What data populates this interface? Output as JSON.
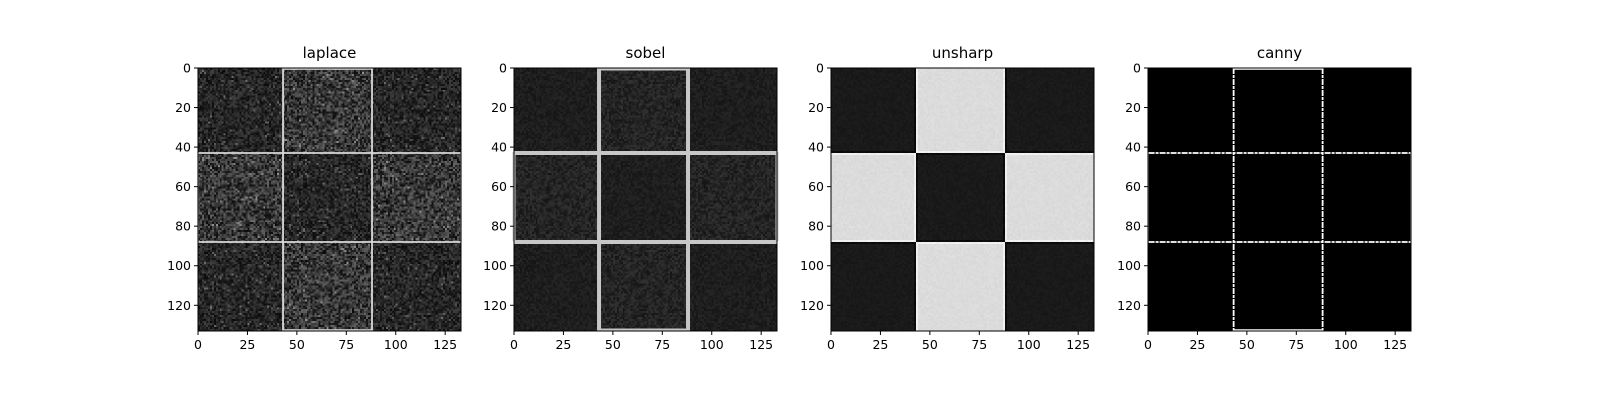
{
  "chart_data": [
    {
      "type": "heatmap",
      "title": "laplace",
      "variant": "laplace",
      "colormap": "gray",
      "image_size": [
        133,
        133
      ],
      "xlim": [
        0,
        133
      ],
      "ylim": [
        133,
        0
      ],
      "xticks": [
        0,
        25,
        50,
        75,
        100,
        125
      ],
      "yticks": [
        0,
        20,
        40,
        60,
        80,
        100,
        120
      ],
      "squares": {
        "low": 43,
        "high": 88
      },
      "intensities": {
        "background": 0.04,
        "noise": 0.35,
        "edge": 0.85
      }
    },
    {
      "type": "heatmap",
      "title": "sobel",
      "variant": "sobel",
      "colormap": "gray",
      "image_size": [
        133,
        133
      ],
      "xlim": [
        0,
        133
      ],
      "ylim": [
        133,
        0
      ],
      "xticks": [
        0,
        25,
        50,
        75,
        100,
        125
      ],
      "yticks": [
        0,
        20,
        40,
        60,
        80,
        100,
        120
      ],
      "squares": {
        "low": 43,
        "high": 88
      },
      "intensities": {
        "background": 0.08,
        "noise": 0.12,
        "edge": 0.78
      }
    },
    {
      "type": "heatmap",
      "title": "unsharp",
      "variant": "unsharp",
      "colormap": "gray",
      "image_size": [
        133,
        133
      ],
      "xlim": [
        0,
        133
      ],
      "ylim": [
        133,
        0
      ],
      "xticks": [
        0,
        25,
        50,
        75,
        100,
        125
      ],
      "yticks": [
        0,
        20,
        40,
        60,
        80,
        100,
        120
      ],
      "squares": {
        "low": 43,
        "high": 88
      },
      "intensities": {
        "dark": 0.1,
        "light": 0.86
      }
    },
    {
      "type": "heatmap",
      "title": "canny",
      "variant": "canny",
      "colormap": "gray",
      "image_size": [
        133,
        133
      ],
      "xlim": [
        0,
        133
      ],
      "ylim": [
        133,
        0
      ],
      "xticks": [
        0,
        25,
        50,
        75,
        100,
        125
      ],
      "yticks": [
        0,
        20,
        40,
        60,
        80,
        100,
        120
      ],
      "squares": {
        "low": 43,
        "high": 88
      },
      "intensities": {
        "background": 0.0,
        "edge": 1.0
      }
    }
  ]
}
